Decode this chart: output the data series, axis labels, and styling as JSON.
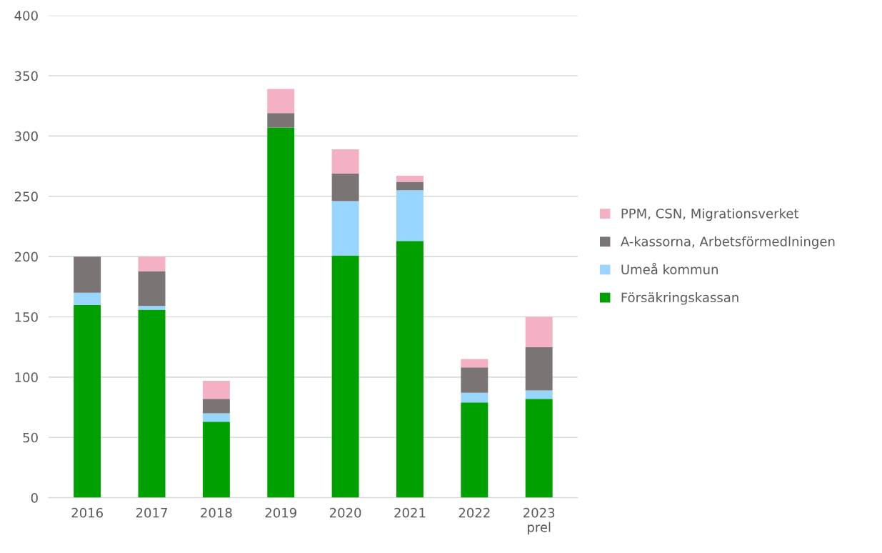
{
  "chart_data": {
    "type": "bar",
    "stacked": true,
    "categories": [
      "2016",
      "2017",
      "2018",
      "2019",
      "2020",
      "2021",
      "2022",
      "2023\nprel"
    ],
    "series": [
      {
        "name": "Försäkringskassan",
        "color": "#00a000",
        "values": [
          160,
          156,
          63,
          307,
          201,
          213,
          79,
          82
        ]
      },
      {
        "name": "Umeå kommun",
        "color": "#99d6ff",
        "values": [
          10,
          3,
          7,
          0,
          45,
          42,
          8,
          7
        ]
      },
      {
        "name": "A-kassorna, Arbetsförmedlningen",
        "color": "#7a7574",
        "values": [
          30,
          29,
          12,
          12,
          23,
          7,
          21,
          36
        ]
      },
      {
        "name": "PPM, CSN, Migrationsverket",
        "color": "#f4b1c3",
        "values": [
          0,
          12,
          15,
          20,
          20,
          5,
          7,
          25
        ]
      }
    ],
    "ylim": [
      0,
      400
    ],
    "yticks": [
      0,
      50,
      100,
      150,
      200,
      250,
      300,
      350,
      400
    ],
    "grid": "y",
    "legend": "right"
  }
}
